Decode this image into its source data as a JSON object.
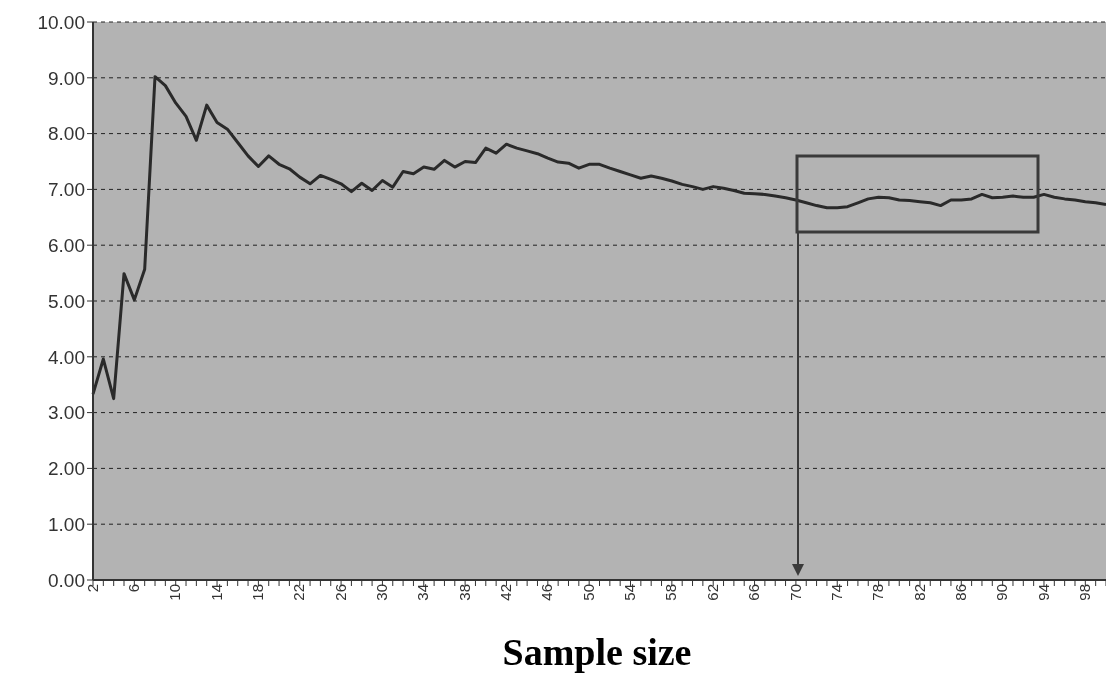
{
  "chart_data": {
    "type": "line",
    "xlabel": "Sample size",
    "categories": [
      "2",
      null,
      null,
      null,
      "6",
      null,
      null,
      null,
      "10",
      null,
      null,
      null,
      "14",
      null,
      null,
      null,
      "18",
      null,
      null,
      null,
      "22",
      null,
      null,
      null,
      "26",
      null,
      null,
      null,
      "30",
      null,
      null,
      null,
      "34",
      null,
      null,
      null,
      "38",
      null,
      null,
      null,
      "42",
      null,
      null,
      null,
      "46",
      null,
      null,
      null,
      "50",
      null,
      null,
      null,
      "54",
      null,
      null,
      null,
      "58",
      null,
      null,
      null,
      "62",
      null,
      null,
      null,
      "66",
      null,
      null,
      null,
      "70",
      null,
      null,
      null,
      "74",
      null,
      null,
      null,
      "78",
      null,
      null,
      null,
      "82",
      null,
      null,
      null,
      "86",
      null,
      null,
      null,
      "90",
      null,
      null,
      null,
      "94",
      null,
      null,
      null,
      "98",
      null,
      null
    ],
    "series": [
      {
        "color": "#2a2a2a",
        "values": [
          3.33,
          3.96,
          3.25,
          5.49,
          5.02,
          5.57,
          9.02,
          8.86,
          8.55,
          8.31,
          7.88,
          8.51,
          8.2,
          8.08,
          7.84,
          7.6,
          7.41,
          7.6,
          7.45,
          7.37,
          7.22,
          7.1,
          7.25,
          7.18,
          7.1,
          6.96,
          7.11,
          6.98,
          7.16,
          7.04,
          7.32,
          7.28,
          7.4,
          7.36,
          7.52,
          7.4,
          7.5,
          7.48,
          7.74,
          7.65,
          7.81,
          7.74,
          7.69,
          7.64,
          7.56,
          7.49,
          7.47,
          7.38,
          7.45,
          7.45,
          7.38,
          7.32,
          7.26,
          7.2,
          7.24,
          7.2,
          7.15,
          7.09,
          7.05,
          7.0,
          7.05,
          7.02,
          6.98,
          6.93,
          6.92,
          6.91,
          6.88,
          6.85,
          6.81,
          6.76,
          6.71,
          6.67,
          6.67,
          6.69,
          6.76,
          6.83,
          6.86,
          6.85,
          6.81,
          6.8,
          6.78,
          6.76,
          6.71,
          6.81,
          6.81,
          6.83,
          6.91,
          6.85,
          6.86,
          6.88,
          6.86,
          6.86,
          6.91,
          6.86,
          6.83,
          6.81,
          6.78,
          6.76,
          6.73
        ]
      }
    ],
    "ylim": [
      0,
      10
    ],
    "yticks": [
      {
        "value": 0,
        "label": "0.00"
      },
      {
        "value": 1,
        "label": "1.00"
      },
      {
        "value": 2,
        "label": "2.00"
      },
      {
        "value": 3,
        "label": "3.00"
      },
      {
        "value": 4,
        "label": "4.00"
      },
      {
        "value": 5,
        "label": "5.00"
      },
      {
        "value": 6,
        "label": "6.00"
      },
      {
        "value": 7,
        "label": "7.00"
      },
      {
        "value": 8,
        "label": "8.00"
      },
      {
        "value": 9,
        "label": "9.00"
      },
      {
        "value": 10,
        "label": "10.00"
      }
    ],
    "grid": "y",
    "legend": false,
    "marker": "none",
    "line_style": "solid"
  }
}
